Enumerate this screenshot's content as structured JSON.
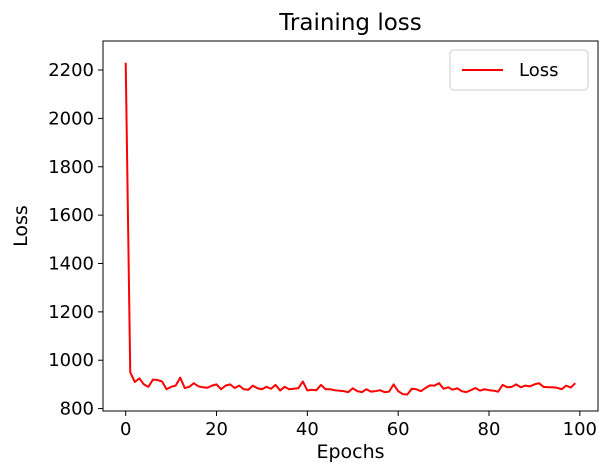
{
  "chart_data": {
    "type": "line",
    "title": "Training loss",
    "xlabel": "Epochs",
    "ylabel": "Loss",
    "xlim": [
      -5,
      104
    ],
    "ylim": [
      790,
      2320
    ],
    "xticks": [
      0,
      20,
      40,
      60,
      80,
      100
    ],
    "yticks": [
      800,
      1000,
      1200,
      1400,
      1600,
      1800,
      2000,
      2200
    ],
    "grid": false,
    "legend_position": "top-right",
    "series": [
      {
        "name": "Loss",
        "color": "#ff0000",
        "x": [
          0,
          1,
          2,
          3,
          4,
          5,
          6,
          7,
          8,
          9,
          10,
          11,
          12,
          13,
          14,
          15,
          16,
          17,
          18,
          19,
          20,
          21,
          22,
          23,
          24,
          25,
          26,
          27,
          28,
          29,
          30,
          31,
          32,
          33,
          34,
          35,
          36,
          37,
          38,
          39,
          40,
          41,
          42,
          43,
          44,
          45,
          46,
          47,
          48,
          49,
          50,
          51,
          52,
          53,
          54,
          55,
          56,
          57,
          58,
          59,
          60,
          61,
          62,
          63,
          64,
          65,
          66,
          67,
          68,
          69,
          70,
          71,
          72,
          73,
          74,
          75,
          76,
          77,
          78,
          79,
          80,
          81,
          82,
          83,
          84,
          85,
          86,
          87,
          88,
          89,
          90,
          91,
          92,
          93,
          94,
          95,
          96,
          97,
          98,
          99
        ],
        "y": [
          2230,
          950,
          910,
          925,
          900,
          890,
          920,
          918,
          912,
          880,
          890,
          895,
          928,
          885,
          890,
          905,
          892,
          888,
          886,
          895,
          900,
          880,
          895,
          900,
          885,
          895,
          880,
          878,
          895,
          884,
          880,
          890,
          882,
          898,
          875,
          890,
          880,
          882,
          884,
          912,
          875,
          878,
          876,
          898,
          880,
          880,
          876,
          874,
          872,
          868,
          884,
          872,
          868,
          880,
          870,
          872,
          876,
          868,
          870,
          900,
          872,
          860,
          858,
          882,
          880,
          872,
          885,
          896,
          895,
          905,
          882,
          888,
          878,
          884,
          872,
          868,
          876,
          885,
          874,
          880,
          876,
          874,
          870,
          898,
          888,
          890,
          900,
          888,
          895,
          892,
          900,
          905,
          890,
          888,
          888,
          886,
          880,
          895,
          887,
          905
        ]
      }
    ]
  }
}
